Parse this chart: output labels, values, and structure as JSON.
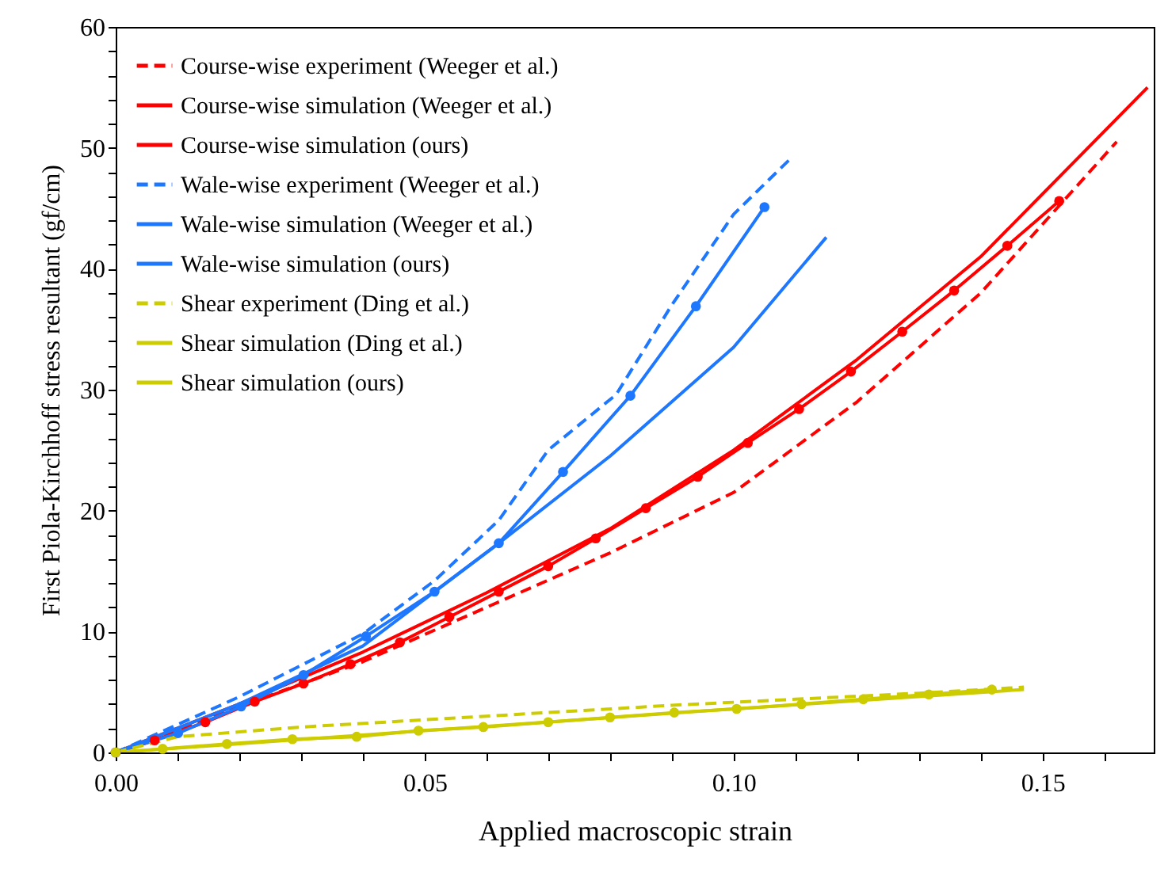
{
  "chart_data": {
    "type": "line",
    "xlabel": "Applied macroscopic strain",
    "ylabel": "First Piola-Kirchhoff stress resultant (gf/cm)",
    "xlim": [
      0,
      0.168
    ],
    "ylim": [
      0,
      60
    ],
    "xticks": [
      {
        "value": 0,
        "label": "0.00"
      },
      {
        "value": 0.01,
        "label": null
      },
      {
        "value": 0.02,
        "label": null
      },
      {
        "value": 0.03,
        "label": null
      },
      {
        "value": 0.04,
        "label": null
      },
      {
        "value": 0.05,
        "label": "0.05"
      },
      {
        "value": 0.06,
        "label": null
      },
      {
        "value": 0.07,
        "label": null
      },
      {
        "value": 0.08,
        "label": null
      },
      {
        "value": 0.09,
        "label": null
      },
      {
        "value": 0.1,
        "label": "0.10"
      },
      {
        "value": 0.11,
        "label": null
      },
      {
        "value": 0.12,
        "label": null
      },
      {
        "value": 0.13,
        "label": null
      },
      {
        "value": 0.14,
        "label": null
      },
      {
        "value": 0.15,
        "label": "0.15"
      },
      {
        "value": 0.16,
        "label": null
      }
    ],
    "yticks": [
      0,
      {
        "value": 2,
        "label": null
      },
      {
        "value": 4,
        "label": null
      },
      {
        "value": 6,
        "label": null
      },
      {
        "value": 8,
        "label": null
      },
      10,
      {
        "value": 12,
        "label": null
      },
      {
        "value": 14,
        "label": null
      },
      {
        "value": 16,
        "label": null
      },
      {
        "value": 18,
        "label": null
      },
      20,
      {
        "value": 22,
        "label": null
      },
      {
        "value": 24,
        "label": null
      },
      {
        "value": 26,
        "label": null
      },
      {
        "value": 28,
        "label": null
      },
      30,
      {
        "value": 32,
        "label": null
      },
      {
        "value": 34,
        "label": null
      },
      {
        "value": 36,
        "label": null
      },
      {
        "value": 38,
        "label": null
      },
      40,
      {
        "value": 42,
        "label": null
      },
      {
        "value": 44,
        "label": null
      },
      {
        "value": 46,
        "label": null
      },
      {
        "value": 48,
        "label": null
      },
      50,
      {
        "value": 52,
        "label": null
      },
      {
        "value": 54,
        "label": null
      },
      {
        "value": 56,
        "label": null
      },
      {
        "value": 58,
        "label": null
      },
      60
    ],
    "grid": false,
    "legend": "top left",
    "series": [
      {
        "name": "Course-wise experiment (Weeger et al.)",
        "color": "#ff0000",
        "line_style": "dashed",
        "marker": "none",
        "x": [
          0,
          0.02,
          0.04,
          0.06,
          0.08,
          0.1,
          0.12,
          0.14,
          0.162
        ],
        "values": [
          0,
          3.8,
          7.5,
          12,
          16.5,
          21.5,
          29,
          38,
          50.5
        ]
      },
      {
        "name": "Course-wise simulation (Weeger et al.)",
        "color": "#ff0000",
        "line_style": "solid",
        "marker": "none",
        "x": [
          0,
          0.02,
          0.04,
          0.06,
          0.08,
          0.1,
          0.12,
          0.14,
          0.167
        ],
        "values": [
          0,
          4,
          8.3,
          13.2,
          18.5,
          25,
          32.5,
          41,
          55
        ]
      },
      {
        "name": "Course-wise simulation (ours)",
        "color": "#ff0000",
        "line_style": "solid",
        "marker": "circle",
        "x": [
          0,
          0.0063,
          0.0145,
          0.0225,
          0.0304,
          0.038,
          0.046,
          0.054,
          0.062,
          0.07,
          0.0777,
          0.0858,
          0.0942,
          0.1023,
          0.1106,
          0.119,
          0.1273,
          0.1357,
          0.1443,
          0.1527
        ],
        "values": [
          0,
          1,
          2.5,
          4.2,
          5.7,
          7.3,
          9.1,
          11.2,
          13.3,
          15.4,
          17.7,
          20.2,
          22.8,
          25.6,
          28.4,
          31.5,
          34.8,
          38.2,
          41.9,
          45.6
        ]
      },
      {
        "name": "Wale-wise experiment (Weeger et al.)",
        "color": "#1e78ff",
        "line_style": "dashed",
        "marker": "none",
        "x": [
          0,
          0.02,
          0.04,
          0.0516,
          0.062,
          0.07,
          0.081,
          0.09,
          0.1,
          0.109
        ],
        "values": [
          0,
          4.6,
          9.8,
          14.2,
          19.2,
          25,
          29.6,
          37,
          44.5,
          49
        ]
      },
      {
        "name": "Wale-wise simulation (Weeger et al.)",
        "color": "#1e78ff",
        "line_style": "solid",
        "marker": "none",
        "x": [
          0,
          0.02,
          0.04,
          0.062,
          0.08,
          0.1,
          0.115
        ],
        "values": [
          0,
          4,
          8.8,
          17.3,
          24.5,
          33.5,
          42.6
        ]
      },
      {
        "name": "Wale-wise simulation (ours)",
        "color": "#1e78ff",
        "line_style": "solid",
        "marker": "circle",
        "x": [
          0,
          0.0101,
          0.0203,
          0.0304,
          0.0405,
          0.0516,
          0.062,
          0.0724,
          0.0833,
          0.0939,
          0.105
        ],
        "values": [
          0,
          1.6,
          3.8,
          6.4,
          9.6,
          13.3,
          17.3,
          23.2,
          29.5,
          36.9,
          45.1
        ]
      },
      {
        "name": "Shear experiment (Ding et al.)",
        "color": "#cccc00",
        "line_style": "dashed",
        "marker": "none",
        "x": [
          0,
          0.01,
          0.03,
          0.05,
          0.07,
          0.09,
          0.11,
          0.13,
          0.147
        ],
        "values": [
          0,
          1.3,
          2.1,
          2.7,
          3.3,
          3.9,
          4.4,
          4.9,
          5.4
        ]
      },
      {
        "name": "Shear simulation (Ding et al.)",
        "color": "#cccc00",
        "line_style": "solid",
        "marker": "none",
        "x": [
          0,
          0.05,
          0.1,
          0.147
        ],
        "values": [
          0,
          1.8,
          3.6,
          5.2
        ]
      },
      {
        "name": "Shear simulation (ours)",
        "color": "#cccc00",
        "line_style": "solid",
        "marker": "circle",
        "x": [
          0,
          0.0076,
          0.018,
          0.0286,
          0.039,
          0.049,
          0.0595,
          0.07,
          0.08,
          0.0904,
          0.1005,
          0.111,
          0.121,
          0.1316,
          0.1418
        ],
        "values": [
          0,
          0.3,
          0.7,
          1.1,
          1.3,
          1.8,
          2.1,
          2.5,
          2.9,
          3.3,
          3.6,
          4,
          4.4,
          4.8,
          5.2
        ]
      }
    ]
  }
}
